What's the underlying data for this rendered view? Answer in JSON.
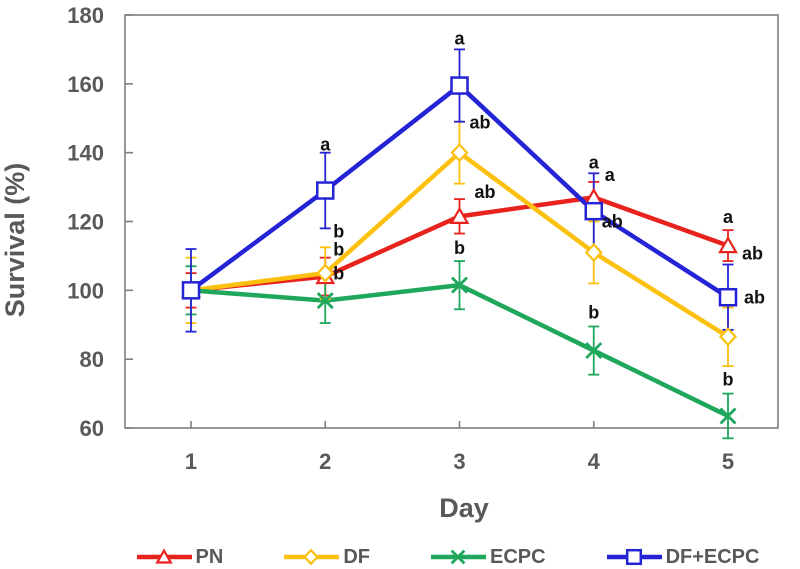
{
  "figure": {
    "background": "#ffffff",
    "axis_color": "#7f7f7f",
    "text_color": "#595959",
    "annotation_color": "#111111"
  },
  "chart_data": {
    "type": "line",
    "title": "",
    "xlabel": "Day",
    "ylabel": "Survival (%)",
    "x": [
      1,
      2,
      3,
      4,
      5
    ],
    "ylim": [
      60,
      180
    ],
    "yticks": [
      60,
      80,
      100,
      120,
      140,
      160,
      180
    ],
    "grid": false,
    "legend_position": "bottom",
    "error_bars": true,
    "series": [
      {
        "name": "PN",
        "color": "#e8221c",
        "marker": "triangle",
        "values": [
          100,
          104,
          121.5,
          127,
          113
        ],
        "errors": [
          5,
          5.5,
          5,
          4.5,
          4.5
        ],
        "point_labels": [
          null,
          {
            "t": "b",
            "dx": 8,
            "dy": -2
          },
          {
            "t": "ab",
            "dx": 15,
            "dy": -1
          },
          {
            "t": "a",
            "dx": 11,
            "dy": -1
          },
          {
            "t": "a",
            "dx": 0,
            "dy": -7
          }
        ]
      },
      {
        "name": "DF",
        "color": "#fcc00e",
        "marker": "diamond",
        "values": [
          100,
          105,
          140,
          111,
          86.5
        ],
        "errors": [
          9.5,
          7.5,
          9,
          9,
          8.5
        ],
        "point_labels": [
          null,
          {
            "t": "b",
            "dx": 8,
            "dy": -10
          },
          {
            "t": "ab",
            "dx": 10,
            "dy": 7
          },
          {
            "t": "ab",
            "dx": 8,
            "dy": 6
          },
          {
            "t": "ab",
            "dx": 16,
            "dy": -4
          }
        ]
      },
      {
        "name": "ECPC",
        "color": "#1fa75c",
        "marker": "x",
        "values": [
          100,
          97,
          101.5,
          82.5,
          63.5
        ],
        "errors": [
          7,
          6.5,
          7,
          7,
          6.5
        ],
        "point_labels": [
          null,
          {
            "t": "b",
            "dx": 8,
            "dy": 1
          },
          {
            "t": "b",
            "dx": 0,
            "dy": -7
          },
          {
            "t": "b",
            "dx": 0,
            "dy": -8
          },
          {
            "t": "b",
            "dx": 0,
            "dy": -8
          }
        ]
      },
      {
        "name": "DF+ECPC",
        "color": "#2424d6",
        "marker": "square",
        "values": [
          100,
          129,
          159.5,
          123,
          98
        ],
        "errors": [
          12,
          11,
          10.5,
          11,
          9.5
        ],
        "point_labels": [
          null,
          {
            "t": "a",
            "dx": 0,
            "dy": -2
          },
          {
            "t": "a",
            "dx": 0,
            "dy": -5
          },
          {
            "t": "a",
            "dx": 0,
            "dy": -5
          },
          {
            "t": "ab",
            "dx": 14,
            "dy": -5
          }
        ]
      }
    ]
  }
}
